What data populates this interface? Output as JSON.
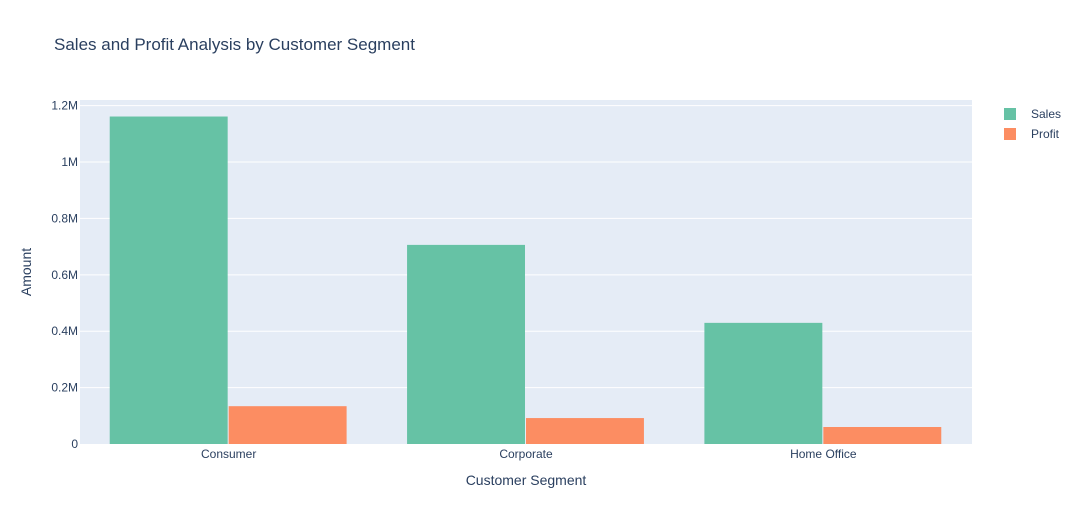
{
  "chart_data": {
    "type": "bar",
    "title": "Sales and Profit Analysis by Customer Segment",
    "xlabel": "Customer Segment",
    "ylabel": "Amount",
    "categories": [
      "Consumer",
      "Corporate",
      "Home Office"
    ],
    "series": [
      {
        "name": "Sales",
        "color": "#66c2a5",
        "values": [
          1161401,
          706146,
          429653
        ]
      },
      {
        "name": "Profit",
        "color": "#fc8d62",
        "values": [
          134119,
          91979,
          60299
        ]
      }
    ],
    "ylim": [
      0,
      1220000
    ],
    "yticks": [
      {
        "value": 0,
        "label": "0"
      },
      {
        "value": 200000,
        "label": "0.2M"
      },
      {
        "value": 400000,
        "label": "0.4M"
      },
      {
        "value": 600000,
        "label": "0.6M"
      },
      {
        "value": 800000,
        "label": "0.8M"
      },
      {
        "value": 1000000,
        "label": "1M"
      },
      {
        "value": 1200000,
        "label": "1.2M"
      }
    ],
    "grid": true,
    "legend_position": "top-right",
    "plot_background": "#e5ecf6"
  }
}
